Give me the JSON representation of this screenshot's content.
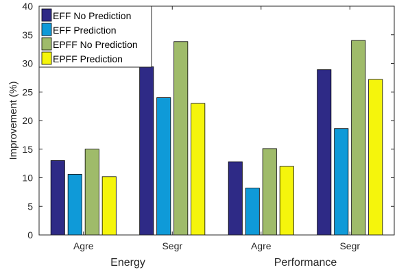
{
  "chart_data": {
    "type": "bar",
    "ylabel": "Improvement (%)",
    "ylim": [
      0,
      40
    ],
    "yticks": [
      0,
      5,
      10,
      15,
      20,
      25,
      30,
      35,
      40
    ],
    "groups": [
      {
        "label": "Energy",
        "categories": [
          "Agre",
          "Segr"
        ]
      },
      {
        "label": "Performance",
        "categories": [
          "Agre",
          "Segr"
        ]
      }
    ],
    "categories": [
      "Agre",
      "Segr",
      "Agre",
      "Segr"
    ],
    "series": [
      {
        "name": "EFF No Prediction",
        "color": "#2e2a86",
        "values": [
          13.0,
          29.4,
          12.8,
          28.9
        ]
      },
      {
        "name": "EFF Prediction",
        "color": "#0f9ad8",
        "values": [
          10.6,
          24.0,
          8.2,
          18.6
        ]
      },
      {
        "name": "EPFF No Prediction",
        "color": "#9fbb6a",
        "values": [
          15.0,
          33.8,
          15.1,
          34.0
        ]
      },
      {
        "name": "EPFF Prediction",
        "color": "#f5f50c",
        "values": [
          10.2,
          23.0,
          12.0,
          27.2
        ]
      }
    ],
    "legend": "top-left",
    "grid": false
  }
}
